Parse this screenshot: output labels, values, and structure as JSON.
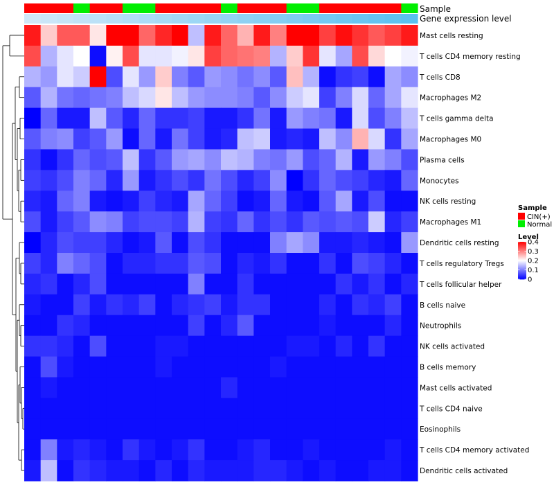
{
  "chart_data": {
    "type": "heatmap",
    "title": "",
    "rows": [
      "Mast cells resting",
      "T cells CD4 memory resting",
      "T cells CD8",
      "Macrophages M2",
      "T cells gamma delta",
      "Macrophages M0",
      "Plasma cells",
      "Monocytes",
      "NK cells resting",
      "Macrophages M1",
      "Dendritic cells resting",
      "T cells regulatory  Tregs",
      "T cells follicular helper",
      "B cells naive",
      "Neutrophils",
      "NK cells activated",
      "B cells memory",
      "Mast cells activated",
      "T cells CD4 naive",
      "Eosinophils",
      "T cells CD4 memory activated",
      "Dendritic cells activated"
    ],
    "column_samples": [
      "CIN(+)",
      "CIN(+)",
      "CIN(+)",
      "Normal",
      "CIN(+)",
      "CIN(+)",
      "Normal",
      "Normal",
      "CIN(+)",
      "CIN(+)",
      "CIN(+)",
      "CIN(+)",
      "Normal",
      "CIN(+)",
      "CIN(+)",
      "CIN(+)",
      "Normal",
      "Normal",
      "CIN(+)",
      "CIN(+)",
      "CIN(+)",
      "CIN(+)",
      "CIN(+)",
      "Normal"
    ],
    "values": [
      [
        0.38,
        0.24,
        0.33,
        0.33,
        0.22,
        0.4,
        0.4,
        0.32,
        0.37,
        0.4,
        0.15,
        0.38,
        0.32,
        0.26,
        0.38,
        0.3,
        0.4,
        0.4,
        0.35,
        0.39,
        0.36,
        0.33,
        0.35,
        0.38
      ],
      [
        0.34,
        0.14,
        0.18,
        0.2,
        0.01,
        0.21,
        0.34,
        0.18,
        0.18,
        0.19,
        0.22,
        0.35,
        0.32,
        0.31,
        0.3,
        0.14,
        0.24,
        0.36,
        0.18,
        0.13,
        0.34,
        0.23,
        0.2,
        0.19
      ],
      [
        0.14,
        0.12,
        0.18,
        0.16,
        0.4,
        0.06,
        0.18,
        0.12,
        0.24,
        0.1,
        0.07,
        0.12,
        0.11,
        0.09,
        0.11,
        0.07,
        0.25,
        0.14,
        0.01,
        0.04,
        0.05,
        0.01,
        0.13,
        0.11
      ],
      [
        0.07,
        0.14,
        0.09,
        0.08,
        0.09,
        0.1,
        0.15,
        0.17,
        0.22,
        0.15,
        0.12,
        0.11,
        0.11,
        0.1,
        0.07,
        0.11,
        0.16,
        0.18,
        0.05,
        0.1,
        0.17,
        0.08,
        0.13,
        0.18
      ],
      [
        0.0,
        0.08,
        0.02,
        0.02,
        0.15,
        0.07,
        0.03,
        0.08,
        0.04,
        0.04,
        0.05,
        0.02,
        0.02,
        0.04,
        0.09,
        0.02,
        0.12,
        0.1,
        0.09,
        0.02,
        0.17,
        0.06,
        0.1,
        0.15
      ],
      [
        0.07,
        0.1,
        0.11,
        0.05,
        0.07,
        0.12,
        0.01,
        0.08,
        0.02,
        0.09,
        0.05,
        0.02,
        0.03,
        0.15,
        0.16,
        0.02,
        0.03,
        0.02,
        0.15,
        0.11,
        0.26,
        0.17,
        0.04,
        0.13
      ],
      [
        0.04,
        0.01,
        0.04,
        0.08,
        0.06,
        0.07,
        0.15,
        0.04,
        0.07,
        0.12,
        0.13,
        0.11,
        0.15,
        0.14,
        0.1,
        0.09,
        0.12,
        0.06,
        0.08,
        0.14,
        0.02,
        0.12,
        0.1,
        0.06
      ],
      [
        0.05,
        0.04,
        0.06,
        0.1,
        0.08,
        0.03,
        0.12,
        0.02,
        0.04,
        0.06,
        0.04,
        0.09,
        0.06,
        0.03,
        0.05,
        0.11,
        0.0,
        0.04,
        0.08,
        0.06,
        0.05,
        0.03,
        0.02,
        0.08
      ],
      [
        0.03,
        0.02,
        0.08,
        0.1,
        0.02,
        0.01,
        0.02,
        0.05,
        0.03,
        0.02,
        0.13,
        0.08,
        0.05,
        0.01,
        0.02,
        0.08,
        0.02,
        0.01,
        0.07,
        0.13,
        0.02,
        0.06,
        0.01,
        0.01
      ],
      [
        0.06,
        0.02,
        0.05,
        0.07,
        0.11,
        0.1,
        0.05,
        0.06,
        0.06,
        0.05,
        0.14,
        0.05,
        0.04,
        0.08,
        0.04,
        0.06,
        0.04,
        0.07,
        0.06,
        0.07,
        0.06,
        0.16,
        0.03,
        0.05
      ],
      [
        0.0,
        0.03,
        0.06,
        0.05,
        0.05,
        0.03,
        0.01,
        0.02,
        0.07,
        0.01,
        0.06,
        0.04,
        0.01,
        0.01,
        0.01,
        0.1,
        0.13,
        0.11,
        0.02,
        0.02,
        0.03,
        0.02,
        0.01,
        0.12
      ],
      [
        0.05,
        0.03,
        0.1,
        0.08,
        0.06,
        0.01,
        0.03,
        0.03,
        0.04,
        0.04,
        0.07,
        0.06,
        0.01,
        0.03,
        0.02,
        0.04,
        0.01,
        0.01,
        0.04,
        0.01,
        0.06,
        0.05,
        0.03,
        0.01
      ],
      [
        0.03,
        0.04,
        0.01,
        0.03,
        0.06,
        0.01,
        0.01,
        0.01,
        0.01,
        0.01,
        0.1,
        0.01,
        0.01,
        0.04,
        0.01,
        0.01,
        0.01,
        0.01,
        0.01,
        0.04,
        0.02,
        0.04,
        0.01,
        0.03
      ],
      [
        0.02,
        0.01,
        0.01,
        0.05,
        0.02,
        0.04,
        0.03,
        0.05,
        0.01,
        0.03,
        0.04,
        0.05,
        0.02,
        0.04,
        0.04,
        0.01,
        0.01,
        0.01,
        0.03,
        0.01,
        0.04,
        0.03,
        0.05,
        0.01
      ],
      [
        0.01,
        0.01,
        0.04,
        0.03,
        0.01,
        0.01,
        0.01,
        0.01,
        0.01,
        0.01,
        0.05,
        0.01,
        0.03,
        0.07,
        0.01,
        0.01,
        0.01,
        0.01,
        0.02,
        0.01,
        0.01,
        0.01,
        0.03,
        0.01
      ],
      [
        0.04,
        0.04,
        0.03,
        0.01,
        0.06,
        0.01,
        0.01,
        0.01,
        0.02,
        0.02,
        0.01,
        0.01,
        0.01,
        0.01,
        0.01,
        0.01,
        0.02,
        0.02,
        0.01,
        0.03,
        0.01,
        0.04,
        0.01,
        0.01
      ],
      [
        0.01,
        0.06,
        0.02,
        0.01,
        0.01,
        0.01,
        0.01,
        0.01,
        0.02,
        0.01,
        0.01,
        0.01,
        0.01,
        0.01,
        0.01,
        0.02,
        0.01,
        0.01,
        0.01,
        0.01,
        0.01,
        0.01,
        0.01,
        0.01
      ],
      [
        0.01,
        0.02,
        0.01,
        0.01,
        0.01,
        0.01,
        0.01,
        0.01,
        0.01,
        0.01,
        0.01,
        0.01,
        0.03,
        0.01,
        0.01,
        0.01,
        0.01,
        0.01,
        0.01,
        0.01,
        0.01,
        0.01,
        0.01,
        0.01
      ],
      [
        0.01,
        0.01,
        0.01,
        0.01,
        0.01,
        0.01,
        0.01,
        0.01,
        0.01,
        0.01,
        0.01,
        0.01,
        0.01,
        0.01,
        0.01,
        0.01,
        0.01,
        0.01,
        0.01,
        0.01,
        0.01,
        0.01,
        0.01,
        0.01
      ],
      [
        0.01,
        0.01,
        0.01,
        0.01,
        0.01,
        0.01,
        0.01,
        0.01,
        0.01,
        0.01,
        0.01,
        0.01,
        0.01,
        0.01,
        0.01,
        0.01,
        0.01,
        0.01,
        0.01,
        0.01,
        0.01,
        0.01,
        0.01,
        0.01
      ],
      [
        0.01,
        0.1,
        0.02,
        0.03,
        0.02,
        0.01,
        0.04,
        0.02,
        0.01,
        0.02,
        0.04,
        0.01,
        0.01,
        0.02,
        0.03,
        0.01,
        0.01,
        0.02,
        0.01,
        0.01,
        0.01,
        0.01,
        0.02,
        0.01
      ],
      [
        0.02,
        0.15,
        0.01,
        0.04,
        0.03,
        0.02,
        0.02,
        0.01,
        0.03,
        0.01,
        0.03,
        0.02,
        0.02,
        0.02,
        0.03,
        0.03,
        0.02,
        0.01,
        0.02,
        0.01,
        0.01,
        0.02,
        0.02,
        0.01
      ]
    ],
    "annotation_tracks": [
      "Sample",
      "Gene expression level"
    ],
    "legend": {
      "sample": {
        "title": "Sample",
        "entries": [
          {
            "label": "CIN(+)",
            "color": "#ff0000"
          },
          {
            "label": "Normal",
            "color": "#00ee00"
          }
        ]
      },
      "level": {
        "title": "Level",
        "ticks": [
          "0.4",
          "0.3",
          "0.2",
          "0.1",
          "0"
        ],
        "tick_values": [
          0.4,
          0.3,
          0.2,
          0.1,
          0
        ],
        "range": [
          0,
          0.4
        ]
      },
      "placement": "right"
    },
    "colors": {
      "low": "#0000ff",
      "mid": "#ffffff",
      "high": "#ff0000",
      "cin": "#ff0000",
      "normal": "#00ee00",
      "gel_light": "#d0e8f8",
      "gel_dark": "#5bc0f0"
    }
  }
}
